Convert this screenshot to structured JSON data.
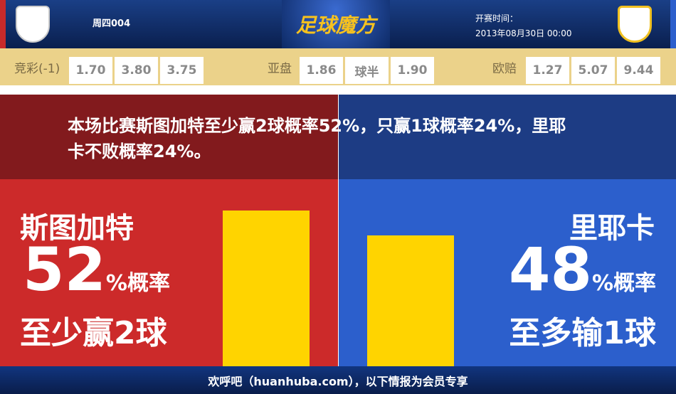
{
  "header": {
    "match_no": "周四004",
    "brand": "足球魔方",
    "kickoff_label": "开赛时间：",
    "kickoff_time": "2013年08月30日 00:00",
    "home_logo": "VfB",
    "away_logo": "HNK"
  },
  "odds": {
    "jingcai": {
      "label": "竞彩(-1)",
      "values": [
        "1.70",
        "3.80",
        "3.75"
      ]
    },
    "asian": {
      "label": "亚盘",
      "values": [
        "1.86",
        "球半",
        "1.90"
      ]
    },
    "euro": {
      "label": "欧赔",
      "values": [
        "1.27",
        "5.07",
        "9.44"
      ]
    }
  },
  "summary": "本场比赛斯图加特至少赢2球概率52%，只赢1球概率24%，里耶卡不败概率24%。",
  "home": {
    "team": "斯图加特",
    "percent": "52",
    "unit": "%概率",
    "desc": "至少赢2球",
    "bar_value": 52
  },
  "away": {
    "team": "里耶卡",
    "percent": "48",
    "unit": "%概率",
    "desc": "至多输1球",
    "bar_value": 48
  },
  "colors": {
    "home": "#cc2a2a",
    "away": "#2c5fcc",
    "bar": "#ffd400"
  },
  "footer": "欢呼吧（huanhuba.com），以下情报为会员专享"
}
